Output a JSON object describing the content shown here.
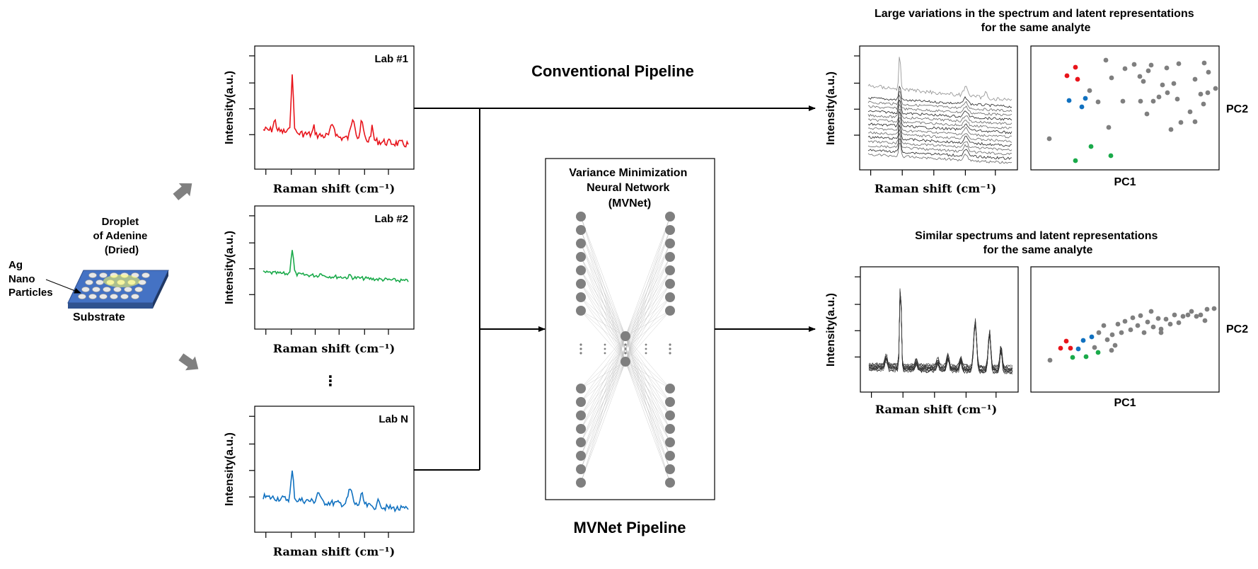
{
  "substrate": {
    "droplet_label": [
      "Droplet",
      "of Adenine",
      "(Dried)"
    ],
    "ag_label": [
      "Ag",
      "Nano",
      "Particles"
    ],
    "substrate_label": "Substrate"
  },
  "spectra_panels": {
    "lab1_title": "Lab #1",
    "lab2_title": "Lab #2",
    "labN_title": "Lab N",
    "x_axis_label": "Raman shift (cm⁻¹)",
    "y_axis_label": "Intensity(a.u.)",
    "ellipsis": "⋮",
    "lab1_color": "#e8141b",
    "lab2_color": "#1aaa4a",
    "labN_color": "#1071c0"
  },
  "pipelines": {
    "conventional_title": "Conventional Pipeline",
    "mvnet_title": "MVNet Pipeline",
    "mvnet_box_title": [
      "Variance Minimization",
      "Neural Network",
      "(MVNet)"
    ]
  },
  "results": {
    "top_caption": [
      "Large variations in the spectrum and latent representations",
      "for the same analyte"
    ],
    "bottom_caption": [
      "Similar spectrums and latent representations",
      "for the same analyte"
    ],
    "x_axis_label": "Raman shift (cm⁻¹)",
    "y_axis_label": "Intensity(a.u.)",
    "pc1_label": "PC1",
    "pc2_label": "PC2"
  },
  "colors": {
    "red": "#e8141b",
    "green": "#1aaa4a",
    "blue": "#1071c0",
    "gray": "#7f7f7f",
    "arrow": "#808080"
  }
}
